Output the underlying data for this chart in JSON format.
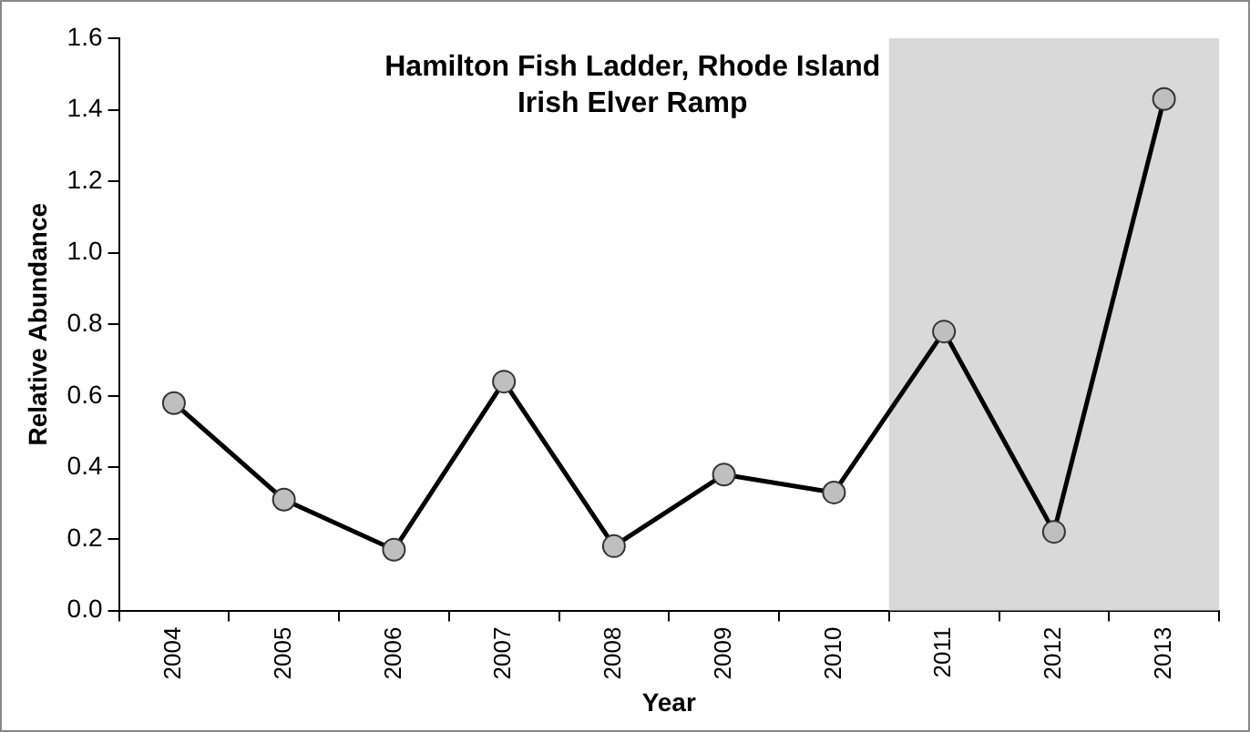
{
  "chart_data": {
    "type": "line",
    "title": "Hamilton Fish Ladder, Rhode Island",
    "subtitle": "Irish Elver Ramp",
    "xlabel": "Year",
    "ylabel": "Relative Abundance",
    "categories": [
      "2004",
      "2005",
      "2006",
      "2007",
      "2008",
      "2009",
      "2010",
      "2011",
      "2012",
      "2013"
    ],
    "series": [
      {
        "color": "#000000",
        "values": [
          0.58,
          0.31,
          0.17,
          0.64,
          0.18,
          0.38,
          0.33,
          0.78,
          0.22,
          1.43
        ]
      }
    ],
    "ylim": [
      0,
      1.6
    ],
    "yticks": [
      {
        "value": 0,
        "label": "0.0"
      },
      {
        "value": 0.2,
        "label": "0.2"
      },
      {
        "value": 0.4,
        "label": "0.4"
      },
      {
        "value": 0.6,
        "label": "0.6"
      },
      {
        "value": 0.8,
        "label": "0.8"
      },
      {
        "value": 1,
        "label": "1.0"
      },
      {
        "value": 1.2,
        "label": "1.2"
      },
      {
        "value": 1.4,
        "label": "1.4"
      },
      {
        "value": 1.6,
        "label": "1.6"
      }
    ],
    "bands": [
      {
        "axis": "x",
        "from": "2011",
        "to": "2013",
        "color": "#d9d9d9"
      }
    ],
    "grid": false,
    "legend": false,
    "marker": "circle",
    "line_style": "solid"
  }
}
